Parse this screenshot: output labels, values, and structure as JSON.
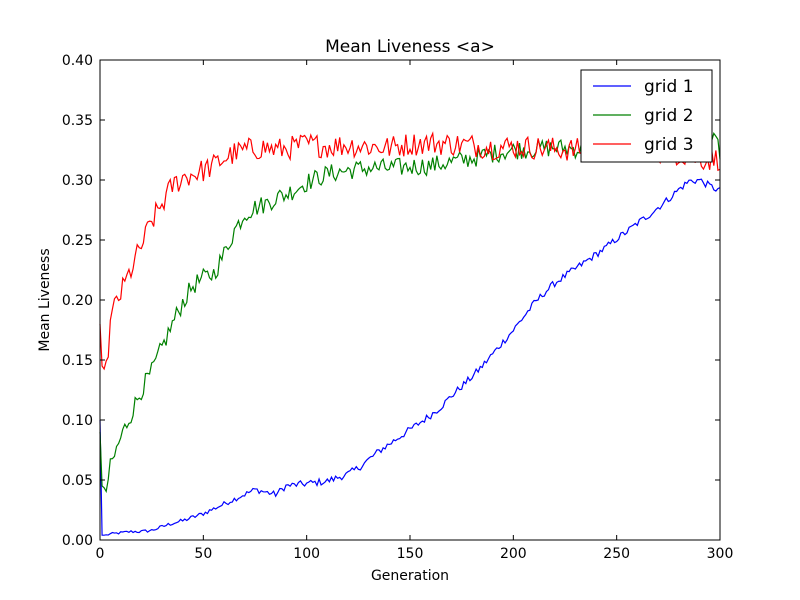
{
  "chart_data": {
    "type": "line",
    "title": "Mean Liveness <a>",
    "xlabel": "Generation",
    "ylabel": "Mean Liveness",
    "xlim": [
      0,
      300
    ],
    "ylim": [
      0,
      0.4
    ],
    "xticks": [
      "0",
      "50",
      "100",
      "150",
      "200",
      "250",
      "300"
    ],
    "yticks": [
      "0.00",
      "0.05",
      "0.10",
      "0.15",
      "0.20",
      "0.25",
      "0.30",
      "0.35",
      "0.40"
    ],
    "grid": false,
    "legend_position": "top-right",
    "series": [
      {
        "name": "grid 1",
        "color": "#0000ff",
        "x": [
          0,
          1,
          3,
          5,
          10,
          15,
          20,
          25,
          30,
          35,
          40,
          45,
          50,
          55,
          60,
          65,
          70,
          75,
          80,
          85,
          90,
          95,
          100,
          105,
          110,
          115,
          120,
          125,
          130,
          135,
          140,
          145,
          150,
          155,
          160,
          165,
          170,
          175,
          180,
          185,
          190,
          195,
          200,
          205,
          210,
          215,
          220,
          225,
          230,
          235,
          240,
          245,
          250,
          255,
          260,
          265,
          270,
          275,
          280,
          285,
          290,
          295,
          300
        ],
        "y": [
          0.1,
          0.004,
          0.004,
          0.005,
          0.006,
          0.007,
          0.007,
          0.008,
          0.011,
          0.014,
          0.016,
          0.019,
          0.022,
          0.026,
          0.03,
          0.034,
          0.038,
          0.042,
          0.04,
          0.038,
          0.045,
          0.046,
          0.047,
          0.048,
          0.049,
          0.052,
          0.055,
          0.06,
          0.067,
          0.074,
          0.08,
          0.086,
          0.092,
          0.098,
          0.104,
          0.111,
          0.12,
          0.128,
          0.136,
          0.145,
          0.155,
          0.165,
          0.175,
          0.186,
          0.197,
          0.206,
          0.214,
          0.22,
          0.226,
          0.232,
          0.238,
          0.244,
          0.251,
          0.257,
          0.264,
          0.27,
          0.277,
          0.284,
          0.292,
          0.299,
          0.3,
          0.295,
          0.291
        ]
      },
      {
        "name": "grid 2",
        "color": "#008000",
        "x": [
          0,
          1,
          3,
          5,
          10,
          15,
          20,
          25,
          30,
          35,
          40,
          45,
          50,
          55,
          60,
          65,
          70,
          75,
          80,
          85,
          90,
          95,
          100,
          110,
          120,
          130,
          140,
          150,
          160,
          170,
          180,
          190,
          200,
          210,
          220,
          230,
          240,
          250,
          260,
          270,
          280,
          290,
          295,
          300
        ],
        "y": [
          0.09,
          0.045,
          0.042,
          0.06,
          0.085,
          0.105,
          0.125,
          0.14,
          0.16,
          0.18,
          0.198,
          0.212,
          0.218,
          0.222,
          0.238,
          0.258,
          0.272,
          0.277,
          0.28,
          0.285,
          0.288,
          0.293,
          0.298,
          0.305,
          0.308,
          0.31,
          0.31,
          0.311,
          0.312,
          0.315,
          0.318,
          0.322,
          0.325,
          0.326,
          0.327,
          0.326,
          0.324,
          0.323,
          0.325,
          0.328,
          0.33,
          0.33,
          0.335,
          0.325
        ]
      },
      {
        "name": "grid 3",
        "color": "#ff0000",
        "x": [
          0,
          1,
          3,
          5,
          8,
          10,
          15,
          20,
          25,
          30,
          35,
          40,
          45,
          50,
          55,
          60,
          65,
          70,
          75,
          80,
          85,
          90,
          95,
          100,
          110,
          120,
          130,
          140,
          150,
          160,
          170,
          180,
          190,
          200,
          210,
          220,
          230,
          240,
          250,
          260,
          270,
          280,
          290,
          295,
          300
        ],
        "y": [
          0.18,
          0.145,
          0.14,
          0.18,
          0.2,
          0.205,
          0.225,
          0.245,
          0.265,
          0.28,
          0.295,
          0.302,
          0.305,
          0.308,
          0.312,
          0.318,
          0.322,
          0.325,
          0.326,
          0.327,
          0.325,
          0.326,
          0.328,
          0.33,
          0.328,
          0.329,
          0.328,
          0.327,
          0.33,
          0.331,
          0.33,
          0.329,
          0.327,
          0.328,
          0.327,
          0.326,
          0.325,
          0.327,
          0.328,
          0.326,
          0.324,
          0.322,
          0.318,
          0.317,
          0.318
        ]
      }
    ]
  }
}
